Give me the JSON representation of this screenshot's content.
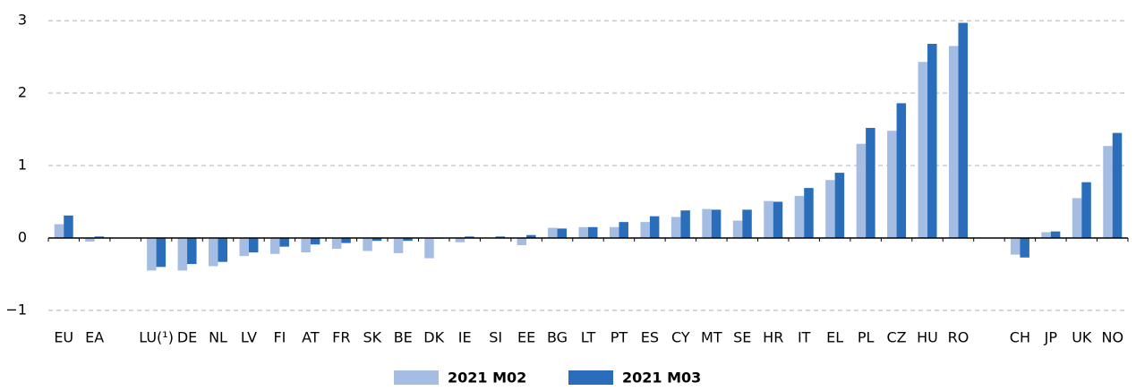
{
  "chart_data": {
    "type": "bar",
    "categories": [
      "EU",
      "EA",
      null,
      "LU(¹)",
      "DE",
      "NL",
      "LV",
      "FI",
      "AT",
      "FR",
      "SK",
      "BE",
      "DK",
      "IE",
      "SI",
      "EE",
      "BG",
      "LT",
      "PT",
      "ES",
      "CY",
      "MT",
      "SE",
      "HR",
      "IT",
      "EL",
      "PL",
      "CZ",
      "HU",
      "RO",
      null,
      "CH",
      "JP",
      "UK",
      "NO"
    ],
    "series": [
      {
        "name": "2021 M02",
        "color": "#a6bde3",
        "values": [
          0.19,
          -0.05,
          null,
          -0.45,
          -0.45,
          -0.39,
          -0.25,
          -0.22,
          -0.2,
          -0.15,
          -0.18,
          -0.21,
          -0.28,
          -0.06,
          0.0,
          -0.1,
          0.14,
          0.15,
          0.15,
          0.22,
          0.29,
          0.4,
          0.24,
          0.51,
          0.58,
          0.8,
          1.3,
          1.48,
          2.43,
          2.65,
          null,
          -0.23,
          0.08,
          0.55,
          1.27
        ]
      },
      {
        "name": "2021 M03",
        "color": "#2a6ebb",
        "values": [
          0.31,
          0.02,
          null,
          -0.4,
          -0.36,
          -0.33,
          -0.2,
          -0.12,
          -0.09,
          -0.07,
          -0.04,
          -0.04,
          -0.01,
          0.02,
          0.02,
          0.04,
          0.13,
          0.15,
          0.22,
          0.3,
          0.38,
          0.39,
          0.39,
          0.5,
          0.69,
          0.9,
          1.52,
          1.86,
          2.68,
          2.97,
          null,
          -0.27,
          0.09,
          0.77,
          1.45
        ]
      }
    ],
    "ylim": [
      -1.1,
      3.1
    ],
    "yticks": [
      {
        "value": -1,
        "label": "−1"
      },
      0,
      1,
      2,
      3
    ],
    "grid": true,
    "legend": "bottom"
  }
}
